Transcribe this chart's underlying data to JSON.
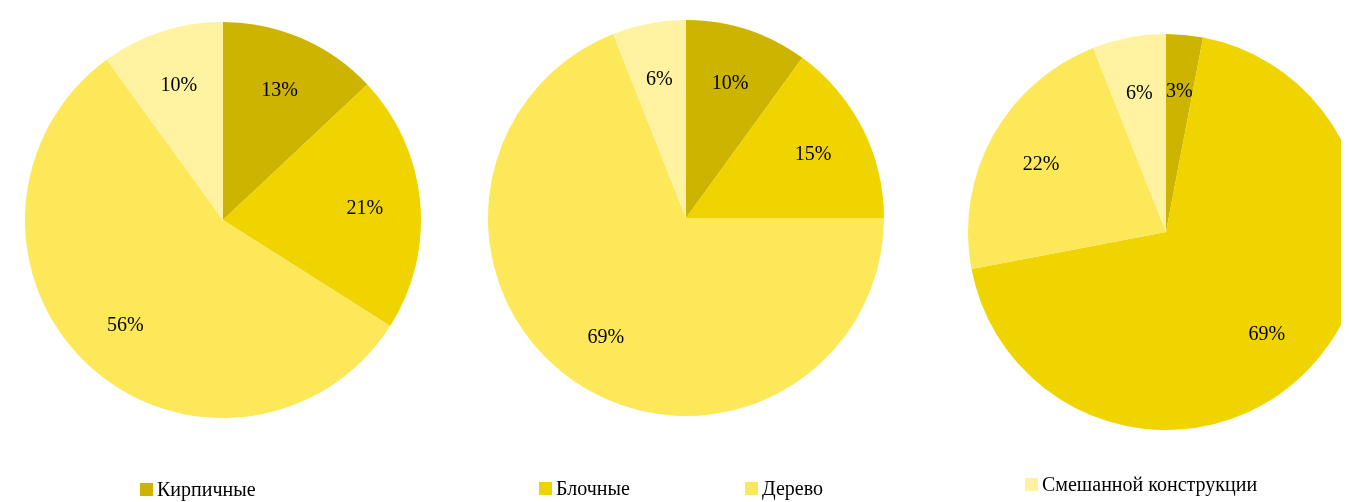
{
  "chart_data": [
    {
      "type": "pie",
      "categories": [
        "Кирпичные",
        "Блочные",
        "Дерево",
        "Смешанной конструкции"
      ],
      "values": [
        13,
        21,
        56,
        10
      ],
      "value_labels": [
        "13%",
        "21%",
        "56%",
        "10%"
      ],
      "colors": [
        "#cdb400",
        "#f0d400",
        "#fde85a",
        "#fff2a0"
      ],
      "legend": "bottom"
    },
    {
      "type": "pie",
      "categories": [
        null,
        null,
        null,
        null
      ],
      "values": [
        10,
        15,
        69,
        6
      ],
      "value_labels": [
        "10%",
        "15%",
        "69%",
        "6%"
      ],
      "colors": [
        "#cdb400",
        "#f0d400",
        "#fde85a",
        "#fff2a0"
      ]
    },
    {
      "type": "pie",
      "categories": [
        null,
        null,
        null,
        null
      ],
      "values": [
        3,
        69,
        22,
        6
      ],
      "value_labels": [
        "3%",
        "69%",
        "22%",
        "6%"
      ],
      "colors": [
        "#cdb400",
        "#f0d400",
        "#fde85a",
        "#fff2a0"
      ]
    }
  ]
}
